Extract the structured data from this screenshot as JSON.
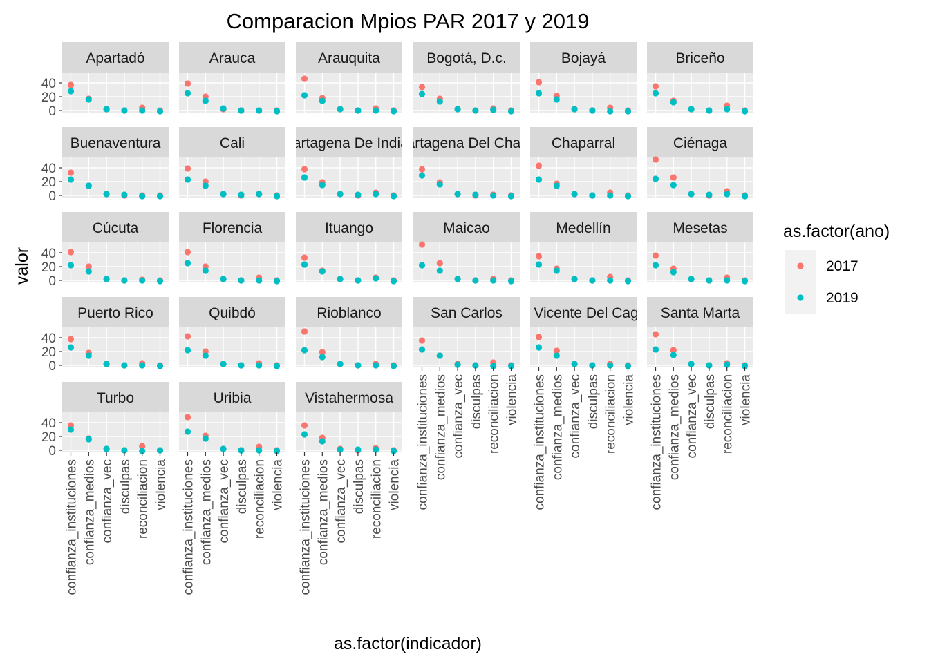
{
  "chart_data": {
    "type": "scatter",
    "title": "Comparacion Mpios PAR 2017 y 2019",
    "xlabel": "as.factor(indicador)",
    "ylabel": "valor",
    "categories": [
      "confianza_instituciones",
      "confianza_medios",
      "confianza_vec",
      "disculpas",
      "reconciliacion",
      "violencia"
    ],
    "y_ticks": [
      0,
      20,
      40
    ],
    "ylim": [
      -3,
      55
    ],
    "legend": {
      "title": "as.factor(ano)",
      "position": "right",
      "entries": [
        {
          "label": "2017",
          "color": "#F8766D"
        },
        {
          "label": "2019",
          "color": "#00BFC4"
        }
      ]
    },
    "facets": [
      {
        "name": "Apartadó",
        "series": [
          {
            "name": "2017",
            "values": [
              37,
              17,
              2,
              0,
              4,
              0
            ]
          },
          {
            "name": "2019",
            "values": [
              28,
              16,
              2,
              0,
              0,
              -1
            ]
          }
        ]
      },
      {
        "name": "Arauca",
        "series": [
          {
            "name": "2017",
            "values": [
              39,
              20,
              2,
              0,
              0,
              0
            ]
          },
          {
            "name": "2019",
            "values": [
              25,
              14,
              3,
              0,
              0,
              -1
            ]
          }
        ]
      },
      {
        "name": "Arauquita",
        "series": [
          {
            "name": "2017",
            "values": [
              46,
              18,
              2,
              0,
              3,
              0
            ]
          },
          {
            "name": "2019",
            "values": [
              22,
              14,
              2,
              0,
              0,
              -1
            ]
          }
        ]
      },
      {
        "name": "Bogotá, D.c.",
        "series": [
          {
            "name": "2017",
            "values": [
              34,
              17,
              2,
              0,
              3,
              0
            ]
          },
          {
            "name": "2019",
            "values": [
              24,
              13,
              2,
              0,
              1,
              -1
            ]
          }
        ]
      },
      {
        "name": "Bojayá",
        "series": [
          {
            "name": "2017",
            "values": [
              41,
              21,
              2,
              0,
              4,
              0
            ]
          },
          {
            "name": "2019",
            "values": [
              25,
              16,
              2,
              0,
              -1,
              -1
            ]
          }
        ]
      },
      {
        "name": "Briceño",
        "series": [
          {
            "name": "2017",
            "values": [
              35,
              14,
              2,
              0,
              7,
              0
            ]
          },
          {
            "name": "2019",
            "values": [
              25,
              12,
              2,
              0,
              2,
              -1
            ]
          }
        ]
      },
      {
        "name": "Buenaventura",
        "series": [
          {
            "name": "2017",
            "values": [
              33,
              14,
              2,
              0,
              0,
              0
            ]
          },
          {
            "name": "2019",
            "values": [
              23,
              14,
              2,
              1,
              -1,
              -1
            ]
          }
        ]
      },
      {
        "name": "Cali",
        "series": [
          {
            "name": "2017",
            "values": [
              39,
              20,
              2,
              0,
              2,
              0
            ]
          },
          {
            "name": "2019",
            "values": [
              23,
              14,
              2,
              1,
              2,
              -1
            ]
          }
        ]
      },
      {
        "name": "Cartagena De Indias",
        "series": [
          {
            "name": "2017",
            "values": [
              38,
              19,
              2,
              0,
              4,
              0
            ]
          },
          {
            "name": "2019",
            "values": [
              26,
              15,
              2,
              1,
              2,
              -1
            ]
          }
        ]
      },
      {
        "name": "Cartagena Del Chairá",
        "series": [
          {
            "name": "2017",
            "values": [
              38,
              19,
              2,
              0,
              1,
              0
            ]
          },
          {
            "name": "2019",
            "values": [
              29,
              16,
              2,
              1,
              0,
              -1
            ]
          }
        ]
      },
      {
        "name": "Chaparral",
        "series": [
          {
            "name": "2017",
            "values": [
              43,
              17,
              2,
              0,
              4,
              0
            ]
          },
          {
            "name": "2019",
            "values": [
              23,
              14,
              2,
              0,
              0,
              -1
            ]
          }
        ]
      },
      {
        "name": "Ciénaga",
        "series": [
          {
            "name": "2017",
            "values": [
              52,
              26,
              2,
              0,
              6,
              0
            ]
          },
          {
            "name": "2019",
            "values": [
              24,
              15,
              2,
              1,
              2,
              -1
            ]
          }
        ]
      },
      {
        "name": "Cúcuta",
        "series": [
          {
            "name": "2017",
            "values": [
              41,
              20,
              2,
              0,
              1,
              0
            ]
          },
          {
            "name": "2019",
            "values": [
              22,
              13,
              2,
              0,
              0,
              -1
            ]
          }
        ]
      },
      {
        "name": "Florencia",
        "series": [
          {
            "name": "2017",
            "values": [
              41,
              20,
              2,
              0,
              4,
              0
            ]
          },
          {
            "name": "2019",
            "values": [
              25,
              14,
              2,
              0,
              0,
              -1
            ]
          }
        ]
      },
      {
        "name": "Ituango",
        "series": [
          {
            "name": "2017",
            "values": [
              33,
              14,
              2,
              0,
              4,
              0
            ]
          },
          {
            "name": "2019",
            "values": [
              23,
              13,
              2,
              0,
              3,
              -1
            ]
          }
        ]
      },
      {
        "name": "Maicao",
        "series": [
          {
            "name": "2017",
            "values": [
              52,
              25,
              2,
              0,
              2,
              0
            ]
          },
          {
            "name": "2019",
            "values": [
              22,
              14,
              2,
              0,
              0,
              -1
            ]
          }
        ]
      },
      {
        "name": "Medellín",
        "series": [
          {
            "name": "2017",
            "values": [
              35,
              17,
              2,
              0,
              5,
              0
            ]
          },
          {
            "name": "2019",
            "values": [
              23,
              14,
              2,
              0,
              0,
              -1
            ]
          }
        ]
      },
      {
        "name": "Mesetas",
        "series": [
          {
            "name": "2017",
            "values": [
              36,
              17,
              2,
              0,
              4,
              0
            ]
          },
          {
            "name": "2019",
            "values": [
              22,
              12,
              2,
              0,
              0,
              -1
            ]
          }
        ]
      },
      {
        "name": "Puerto Rico",
        "series": [
          {
            "name": "2017",
            "values": [
              38,
              18,
              2,
              0,
              3,
              0
            ]
          },
          {
            "name": "2019",
            "values": [
              26,
              14,
              2,
              0,
              0,
              -1
            ]
          }
        ]
      },
      {
        "name": "Quibdó",
        "series": [
          {
            "name": "2017",
            "values": [
              42,
              20,
              2,
              0,
              3,
              0
            ]
          },
          {
            "name": "2019",
            "values": [
              22,
              14,
              2,
              0,
              0,
              -1
            ]
          }
        ]
      },
      {
        "name": "Rioblanco",
        "series": [
          {
            "name": "2017",
            "values": [
              49,
              19,
              2,
              0,
              2,
              0
            ]
          },
          {
            "name": "2019",
            "values": [
              22,
              12,
              2,
              0,
              0,
              -1
            ]
          }
        ]
      },
      {
        "name": "San Carlos",
        "series": [
          {
            "name": "2017",
            "values": [
              36,
              14,
              2,
              0,
              4,
              0
            ]
          },
          {
            "name": "2019",
            "values": [
              23,
              14,
              1,
              0,
              -1,
              -1
            ]
          }
        ]
      },
      {
        "name": "San Vicente Del Caguán",
        "series": [
          {
            "name": "2017",
            "values": [
              41,
              21,
              2,
              0,
              2,
              0
            ]
          },
          {
            "name": "2019",
            "values": [
              26,
              14,
              2,
              0,
              0,
              -1
            ]
          }
        ]
      },
      {
        "name": "Santa Marta",
        "series": [
          {
            "name": "2017",
            "values": [
              45,
              22,
              2,
              0,
              3,
              0
            ]
          },
          {
            "name": "2019",
            "values": [
              23,
              15,
              2,
              0,
              1,
              -1
            ]
          }
        ]
      },
      {
        "name": "Turbo",
        "series": [
          {
            "name": "2017",
            "values": [
              36,
              17,
              2,
              0,
              6,
              0
            ]
          },
          {
            "name": "2019",
            "values": [
              30,
              16,
              2,
              0,
              -1,
              0
            ]
          }
        ]
      },
      {
        "name": "Uribia",
        "series": [
          {
            "name": "2017",
            "values": [
              48,
              21,
              2,
              0,
              5,
              0
            ]
          },
          {
            "name": "2019",
            "values": [
              27,
              17,
              2,
              0,
              0,
              -1
            ]
          }
        ]
      },
      {
        "name": "Vistahermosa",
        "series": [
          {
            "name": "2017",
            "values": [
              36,
              18,
              2,
              0,
              3,
              0
            ]
          },
          {
            "name": "2019",
            "values": [
              23,
              13,
              1,
              1,
              1,
              -1
            ]
          }
        ]
      }
    ]
  }
}
